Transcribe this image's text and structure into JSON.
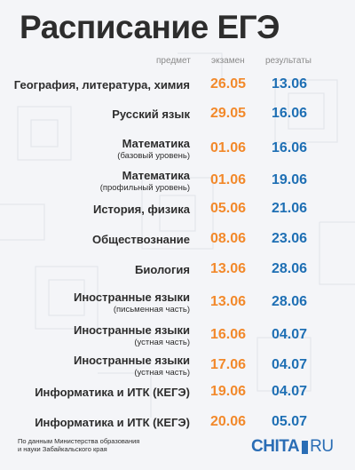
{
  "title": "Расписание ЕГЭ",
  "columns": {
    "subject": "предмет",
    "exam": "экзамен",
    "results": "результаты"
  },
  "rows": [
    {
      "subject": "География, литература, химия",
      "note": "",
      "exam": "26.05",
      "result": "13.06"
    },
    {
      "subject": "Русский язык",
      "note": "",
      "exam": "29.05",
      "result": "16.06"
    },
    {
      "subject": "Математика",
      "note": "(базовый уровень)",
      "exam": "01.06",
      "result": "16.06"
    },
    {
      "subject": "Математика",
      "note": "(профильный уровень)",
      "exam": "01.06",
      "result": "19.06"
    },
    {
      "subject": "История, физика",
      "note": "",
      "exam": "05.06",
      "result": "21.06"
    },
    {
      "subject": "Обществознание",
      "note": "",
      "exam": "08.06",
      "result": "23.06"
    },
    {
      "subject": "Биология",
      "note": "",
      "exam": "13.06",
      "result": "28.06"
    },
    {
      "subject": "Иностранные языки",
      "note": "(письменная часть)",
      "exam": "13.06",
      "result": "28.06"
    },
    {
      "subject": "Иностранные языки",
      "note": "(устная часть)",
      "exam": "16.06",
      "result": "04.07"
    },
    {
      "subject": "Иностранные языки",
      "note": "(устная часть)",
      "exam": "17.06",
      "result": "04.07"
    },
    {
      "subject": "Информатика и ИТК (КЕГЭ)",
      "note": "",
      "exam": "19.06",
      "result": "04.07"
    },
    {
      "subject": "Информатика и ИТК (КЕГЭ)",
      "note": "",
      "exam": "20.06",
      "result": "05.07"
    }
  ],
  "footer": {
    "line1": "По данным Министерства образования",
    "line2": "и науки Забайкальского края"
  },
  "logo": {
    "left": "CHITA",
    "right": "RU"
  },
  "colors": {
    "exam": "#f2892b",
    "result": "#1e6fb4",
    "text": "#2d2d2d",
    "brand": "#2a6db5"
  }
}
